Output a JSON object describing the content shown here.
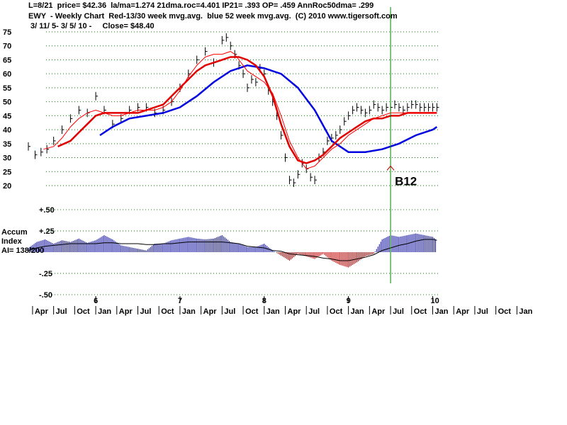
{
  "header": {
    "line1": "L=8/21  price= $42.36  la/ma=1.274 21dma.roc=4.401 IP21= .393 OP= .459 AnnRoc50dma= .299",
    "line2": "EWY  - Weekly Chart  Red-13/30 week mvg.avg.  blue 52 week mvg.avg.  (C) 2010 www.tigersoft.com",
    "line3": " 3/ 11/ 5- 3/ 5/ 10 -     Close= $48.40"
  },
  "colors": {
    "ma13": "#ff0000",
    "ma30": "#e00000",
    "ma52": "#0000e0",
    "accum_pos": "#1010a0",
    "accum_neg": "#c00000",
    "signal_line": "#008000",
    "grid": "#008000"
  },
  "chart_data": [
    {
      "type": "line",
      "title": "EWY - Weekly Chart",
      "ylim": [
        20,
        75
      ],
      "yticks": [
        "75",
        "70",
        "65",
        "60",
        "55",
        "50",
        "45",
        "40",
        "35",
        "30",
        "25",
        "20"
      ],
      "ytick_values": [
        75,
        70,
        65,
        60,
        55,
        50,
        45,
        40,
        35,
        30,
        25,
        20
      ],
      "xlim": [
        2005.2,
        2010.08
      ],
      "year_labels": [
        "6",
        "7",
        "8",
        "9",
        "10"
      ],
      "year_values": [
        2006,
        2007,
        2008,
        2009,
        2010
      ],
      "month_labels": [
        "Apr",
        "Jul",
        "Oct",
        "Jan",
        "Apr",
        "Jul",
        "Oct",
        "Jan",
        "Apr",
        "Jul",
        "Oct",
        "Jan",
        "Apr",
        "Jul",
        "Oct",
        "Jan",
        "Apr",
        "Jul",
        "Oct",
        "Jan",
        "Apr",
        "Jul",
        "Oct",
        "Jan"
      ],
      "month_values": [
        2005.25,
        2005.5,
        2005.75,
        2006.0,
        2006.25,
        2006.5,
        2006.75,
        2007.0,
        2007.25,
        2007.5,
        2007.75,
        2008.0,
        2008.25,
        2008.5,
        2008.75,
        2009.0,
        2009.25,
        2009.5,
        2009.75,
        2010.0,
        2010.25,
        2010.5,
        2010.75,
        2011.0
      ],
      "series": [
        {
          "key": "price",
          "x": [
            2005.2,
            2005.28,
            2005.35,
            2005.42,
            2005.5,
            2005.6,
            2005.7,
            2005.8,
            2005.9,
            2006.0,
            2006.1,
            2006.2,
            2006.3,
            2006.4,
            2006.5,
            2006.6,
            2006.7,
            2006.8,
            2006.9,
            2007.0,
            2007.1,
            2007.2,
            2007.3,
            2007.4,
            2007.5,
            2007.55,
            2007.6,
            2007.65,
            2007.7,
            2007.75,
            2007.8,
            2007.85,
            2007.9,
            2007.95,
            2008.0,
            2008.05,
            2008.1,
            2008.15,
            2008.2,
            2008.25,
            2008.3,
            2008.35,
            2008.4,
            2008.45,
            2008.5,
            2008.55,
            2008.6,
            2008.65,
            2008.7,
            2008.75,
            2008.8,
            2008.85,
            2008.9,
            2008.95,
            2009.0,
            2009.05,
            2009.1,
            2009.15,
            2009.2,
            2009.25,
            2009.3,
            2009.35,
            2009.4,
            2009.45,
            2009.5,
            2009.55,
            2009.6,
            2009.65,
            2009.7,
            2009.75,
            2009.8,
            2009.85,
            2009.9,
            2009.95,
            2010.0,
            2010.05
          ],
          "values": [
            34,
            31,
            32,
            33,
            36,
            40,
            44,
            47,
            46,
            52,
            47,
            42,
            44,
            47,
            48,
            48,
            46,
            47,
            50,
            55,
            60,
            65,
            68,
            64,
            72,
            73,
            70,
            67,
            63,
            60,
            55,
            58,
            57,
            62,
            60,
            54,
            50,
            45,
            38,
            30,
            22,
            21,
            24,
            28,
            26,
            23,
            22,
            30,
            32,
            36,
            37,
            38,
            40,
            43,
            45,
            47,
            48,
            47,
            46,
            47,
            49,
            48,
            47,
            48,
            48,
            49,
            48,
            47,
            48,
            49,
            49,
            48,
            48,
            48,
            48,
            48
          ]
        },
        {
          "key": "ma13",
          "x": [
            2005.38,
            2005.5,
            2005.6,
            2005.7,
            2005.8,
            2005.9,
            2006.0,
            2006.1,
            2006.2,
            2006.3,
            2006.4,
            2006.5,
            2006.6,
            2006.7,
            2006.8,
            2006.9,
            2007.0,
            2007.1,
            2007.2,
            2007.3,
            2007.4,
            2007.5,
            2007.6,
            2007.65,
            2007.7,
            2007.75,
            2007.8,
            2007.9,
            2008.0,
            2008.1,
            2008.2,
            2008.3,
            2008.4,
            2008.5,
            2008.6,
            2008.7,
            2008.8,
            2008.9,
            2009.0,
            2009.1,
            2009.2,
            2009.3,
            2009.4,
            2009.5,
            2009.6,
            2009.7,
            2009.8,
            2009.9,
            2010.0,
            2010.05
          ],
          "values": [
            33,
            34,
            37,
            41,
            44,
            46,
            47,
            46,
            45,
            45,
            46,
            47,
            47,
            47,
            48,
            50,
            54,
            59,
            63,
            66,
            67,
            67,
            68,
            67,
            65,
            63,
            61,
            59,
            57,
            53,
            45,
            36,
            30,
            26,
            27,
            30,
            33,
            35,
            38,
            40,
            42,
            44,
            45,
            46,
            46,
            46,
            46,
            46,
            46,
            46
          ]
        },
        {
          "key": "ma30",
          "x": [
            2005.55,
            2005.7,
            2005.8,
            2005.9,
            2006.0,
            2006.1,
            2006.2,
            2006.3,
            2006.4,
            2006.5,
            2006.6,
            2006.7,
            2006.8,
            2006.9,
            2007.0,
            2007.1,
            2007.2,
            2007.3,
            2007.4,
            2007.5,
            2007.6,
            2007.7,
            2007.8,
            2007.9,
            2008.0,
            2008.1,
            2008.2,
            2008.3,
            2008.4,
            2008.5,
            2008.6,
            2008.7,
            2008.8,
            2008.9,
            2009.0,
            2009.1,
            2009.2,
            2009.3,
            2009.4,
            2009.5,
            2009.6,
            2009.7,
            2009.8,
            2009.9,
            2010.0,
            2010.05
          ],
          "values": [
            34,
            36,
            39,
            42,
            45,
            46,
            46,
            46,
            46,
            46,
            47,
            48,
            49,
            52,
            55,
            58,
            61,
            63,
            64,
            65,
            66,
            66,
            65,
            63,
            59,
            52,
            42,
            34,
            29,
            28,
            29,
            31,
            34,
            37,
            39,
            41,
            43,
            44,
            44,
            45,
            45,
            46,
            46,
            46,
            46,
            46
          ]
        },
        {
          "key": "ma52",
          "x": [
            2006.05,
            2006.2,
            2006.4,
            2006.6,
            2006.8,
            2007.0,
            2007.2,
            2007.4,
            2007.6,
            2007.8,
            2008.0,
            2008.2,
            2008.4,
            2008.6,
            2008.8,
            2009.0,
            2009.2,
            2009.4,
            2009.6,
            2009.8,
            2010.0,
            2010.05
          ],
          "values": [
            38,
            41,
            44,
            45,
            46,
            48,
            52,
            57,
            61,
            63,
            62,
            60,
            55,
            47,
            36,
            32,
            32,
            33,
            35,
            38,
            40,
            41
          ]
        }
      ]
    },
    {
      "type": "area",
      "title": "Accum Index",
      "label_lines": [
        "Accum",
        "Index",
        "AI= 138/200"
      ],
      "ylim": [
        -0.5,
        0.5
      ],
      "yticks": [
        "+.50",
        "+.25",
        "-.25",
        "-.50"
      ],
      "ytick_values": [
        0.5,
        0.25,
        -0.25,
        -0.5
      ],
      "x": [
        2005.2,
        2005.3,
        2005.4,
        2005.5,
        2005.6,
        2005.7,
        2005.8,
        2005.9,
        2006.0,
        2006.1,
        2006.2,
        2006.3,
        2006.4,
        2006.5,
        2006.6,
        2006.7,
        2006.8,
        2006.9,
        2007.0,
        2007.1,
        2007.2,
        2007.3,
        2007.4,
        2007.5,
        2007.6,
        2007.7,
        2007.8,
        2007.9,
        2008.0,
        2008.1,
        2008.2,
        2008.3,
        2008.4,
        2008.5,
        2008.6,
        2008.7,
        2008.8,
        2008.9,
        2009.0,
        2009.1,
        2009.2,
        2009.3,
        2009.4,
        2009.5,
        2009.6,
        2009.7,
        2009.8,
        2009.9,
        2010.0,
        2010.05
      ],
      "values": [
        0.05,
        0.12,
        0.15,
        0.1,
        0.14,
        0.12,
        0.16,
        0.11,
        0.14,
        0.2,
        0.15,
        0.08,
        0.06,
        0.04,
        0.02,
        0.1,
        0.1,
        0.14,
        0.16,
        0.18,
        0.16,
        0.15,
        0.16,
        0.2,
        0.12,
        0.1,
        0.06,
        0.06,
        0.1,
        0.02,
        -0.04,
        -0.1,
        -0.02,
        -0.05,
        -0.08,
        -0.02,
        -0.1,
        -0.15,
        -0.18,
        -0.12,
        -0.05,
        -0.02,
        0.15,
        0.2,
        0.18,
        0.2,
        0.22,
        0.2,
        0.18,
        0.14
      ],
      "ma_values": [
        0.02,
        0.05,
        0.07,
        0.08,
        0.09,
        0.1,
        0.1,
        0.1,
        0.1,
        0.11,
        0.11,
        0.1,
        0.1,
        0.1,
        0.09,
        0.09,
        0.1,
        0.1,
        0.11,
        0.12,
        0.12,
        0.12,
        0.12,
        0.12,
        0.11,
        0.1,
        0.07,
        0.06,
        0.05,
        0.02,
        0.01,
        -0.02,
        -0.03,
        -0.04,
        -0.05,
        -0.07,
        -0.08,
        -0.1,
        -0.1,
        -0.08,
        -0.06,
        -0.03,
        0.02,
        0.05,
        0.08,
        0.1,
        0.13,
        0.15,
        0.15,
        0.14
      ]
    }
  ],
  "signal": {
    "label": "B12",
    "x": 2009.5,
    "arrow_y": 27
  }
}
